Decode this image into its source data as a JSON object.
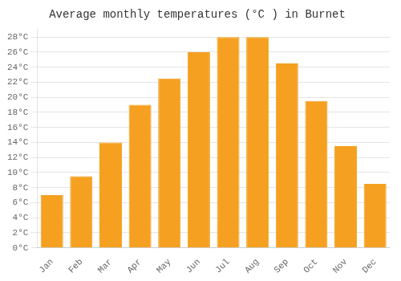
{
  "chart_data": {
    "type": "bar",
    "title": "Average monthly temperatures (°C ) in Burnet",
    "categories": [
      "Jan",
      "Feb",
      "Mar",
      "Apr",
      "May",
      "Jun",
      "Jul",
      "Aug",
      "Sep",
      "Oct",
      "Nov",
      "Dec"
    ],
    "values": [
      7,
      9.5,
      14,
      19,
      22.5,
      26,
      28,
      28,
      24.5,
      19.5,
      13.5,
      8.5
    ],
    "color": "#F5A020",
    "ylim": [
      0,
      29
    ],
    "yticks": [
      {
        "value": 0,
        "label": "0°C"
      },
      {
        "value": 2,
        "label": "2°C"
      },
      {
        "value": 4,
        "label": "4°C"
      },
      {
        "value": 6,
        "label": "6°C"
      },
      {
        "value": 8,
        "label": "8°C"
      },
      {
        "value": 10,
        "label": "10°C"
      },
      {
        "value": 12,
        "label": "12°C"
      },
      {
        "value": 14,
        "label": "14°C"
      },
      {
        "value": 16,
        "label": "16°C"
      },
      {
        "value": 18,
        "label": "18°C"
      },
      {
        "value": 20,
        "label": "20°C"
      },
      {
        "value": 22,
        "label": "22°C"
      },
      {
        "value": 24,
        "label": "24°C"
      },
      {
        "value": 26,
        "label": "26°C"
      },
      {
        "value": 28,
        "label": "28°C"
      }
    ],
    "grid": true
  }
}
